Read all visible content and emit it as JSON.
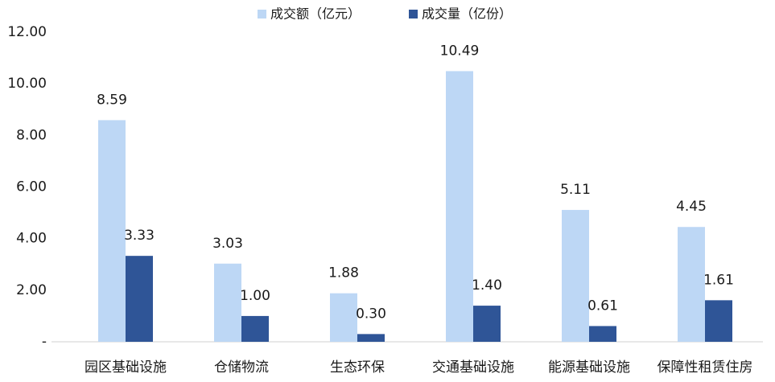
{
  "chart_data": {
    "type": "bar",
    "categories": [
      "园区基础设施",
      "仓储物流",
      "生态环保",
      "交通基础设施",
      "能源基础设施",
      "保障性租赁住房"
    ],
    "series": [
      {
        "name": "成交额（亿元）",
        "color": "#bdd7f5",
        "values": [
          8.59,
          3.03,
          1.88,
          10.49,
          5.11,
          4.45
        ],
        "value_labels": [
          "8.59",
          "3.03",
          "1.88",
          "10.49",
          "5.11",
          "4.45"
        ]
      },
      {
        "name": "成交量（亿份）",
        "color": "#2f5597",
        "values": [
          3.33,
          1.0,
          0.3,
          1.4,
          0.61,
          1.61
        ],
        "value_labels": [
          "3.33",
          "1.00",
          "0.30",
          "1.40",
          "0.61",
          "1.61"
        ]
      }
    ],
    "ylim": [
      0,
      12
    ],
    "yticks": [
      {
        "value": 0,
        "label": "-"
      },
      {
        "value": 2,
        "label": "2.00"
      },
      {
        "value": 4,
        "label": "4.00"
      },
      {
        "value": 6,
        "label": "6.00"
      },
      {
        "value": 8,
        "label": "8.00"
      },
      {
        "value": 10,
        "label": "10.00"
      },
      {
        "value": 12,
        "label": "12.00"
      }
    ],
    "grid": false,
    "legend": "top"
  }
}
